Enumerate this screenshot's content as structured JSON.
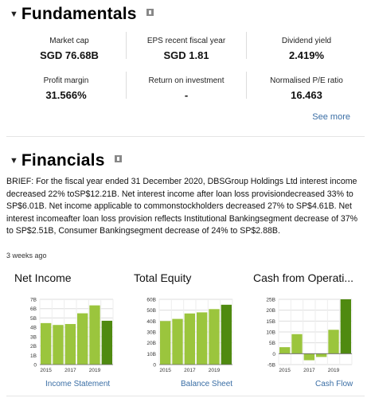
{
  "fundamentals": {
    "title": "Fundamentals",
    "stats": [
      {
        "label": "Market cap",
        "value": "SGD 76.68B"
      },
      {
        "label": "EPS recent fiscal year",
        "value": "SGD 1.81"
      },
      {
        "label": "Dividend yield",
        "value": "2.419%"
      },
      {
        "label": "Profit margin",
        "value": "31.566%"
      },
      {
        "label": "Return on investment",
        "value": "-"
      },
      {
        "label": "Normalised P/E ratio",
        "value": "16.463"
      }
    ],
    "see_more": "See more"
  },
  "financials": {
    "title": "Financials",
    "brief": "BRIEF: For the fiscal year ended 31 December 2020, DBSGroup Holdings Ltd interest income decreased 22% toSP$12.21B. Net interest income after loan loss provisiondecreased 33% to SP$6.01B. Net income applicable to commonstockholders decreased 27% to SP$4.61B. Net interest incomeafter loan loss provision reflects Institutional Bankingsegment decrease of 37% to SP$2.51B, Consumer Bankingsegment decrease of 24% to SP$2.88B.",
    "timestamp": "3 weeks ago"
  },
  "colors": {
    "bar_light": "#9bc53d",
    "bar_dark": "#4f8a10",
    "grid": "#dddddd",
    "link": "#3a6ea5"
  },
  "chart_data": [
    {
      "type": "bar",
      "title": "Net Income",
      "link": "Income Statement",
      "categories": [
        "2015",
        "2016",
        "2017",
        "2018",
        "2019",
        "2020"
      ],
      "values": [
        4.45,
        4.25,
        4.35,
        5.5,
        6.35,
        4.7
      ],
      "ylim": [
        0,
        7
      ],
      "yticks": [
        0,
        1,
        2,
        3,
        4,
        5,
        6,
        7
      ],
      "ytick_labels": [
        "0",
        "1B",
        "2B",
        "3B",
        "4B",
        "5B",
        "6B",
        "7B"
      ],
      "xtick_labels": [
        "2015",
        "",
        "2017",
        "",
        "2019",
        ""
      ]
    },
    {
      "type": "bar",
      "title": "Total Equity",
      "link": "Balance Sheet",
      "categories": [
        "2015",
        "2016",
        "2017",
        "2018",
        "2019",
        "2020"
      ],
      "values": [
        40,
        42,
        47,
        48,
        51,
        55
      ],
      "ylim": [
        0,
        60
      ],
      "yticks": [
        0,
        10,
        20,
        30,
        40,
        50,
        60
      ],
      "ytick_labels": [
        "0",
        "10B",
        "20B",
        "30B",
        "40B",
        "50B",
        "60B"
      ],
      "xtick_labels": [
        "2015",
        "",
        "2017",
        "",
        "2019",
        ""
      ]
    },
    {
      "type": "bar",
      "title": "Cash from Operati...",
      "link": "Cash Flow",
      "categories": [
        "2015",
        "2016",
        "2017",
        "2018",
        "2019",
        "2020"
      ],
      "values": [
        3,
        9,
        -3,
        -1.5,
        11,
        25
      ],
      "ylim": [
        -5,
        25
      ],
      "yticks": [
        -5,
        0,
        5,
        10,
        15,
        20,
        25
      ],
      "ytick_labels": [
        "-5B",
        "0",
        "5B",
        "10B",
        "15B",
        "20B",
        "25B"
      ],
      "xtick_labels": [
        "2015",
        "",
        "2017",
        "",
        "2019",
        ""
      ]
    }
  ]
}
